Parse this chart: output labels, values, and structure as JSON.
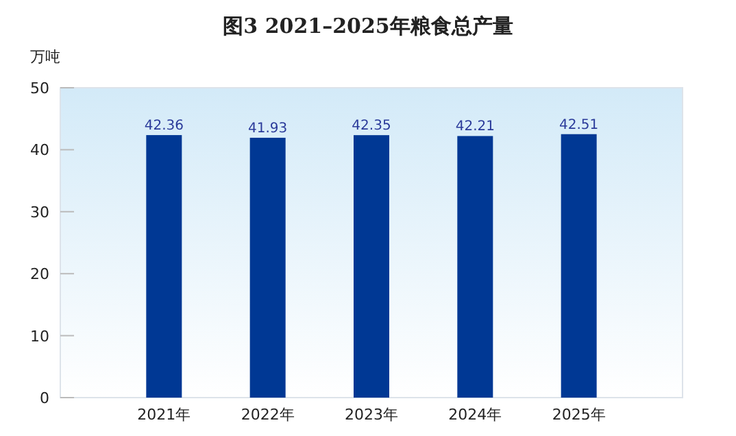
{
  "chart_data": {
    "type": "bar",
    "title": "图3  2021–2025年粮食总产量",
    "ylabel": "万吨",
    "categories": [
      "2021年",
      "2022年",
      "2023年",
      "2024年",
      "2025年"
    ],
    "values": [
      42.36,
      41.93,
      42.35,
      42.21,
      42.51
    ],
    "color": "#003894",
    "data_labels": true,
    "ylim": [
      0,
      50
    ],
    "yticks": [
      0,
      10,
      20,
      30,
      40,
      50
    ]
  }
}
